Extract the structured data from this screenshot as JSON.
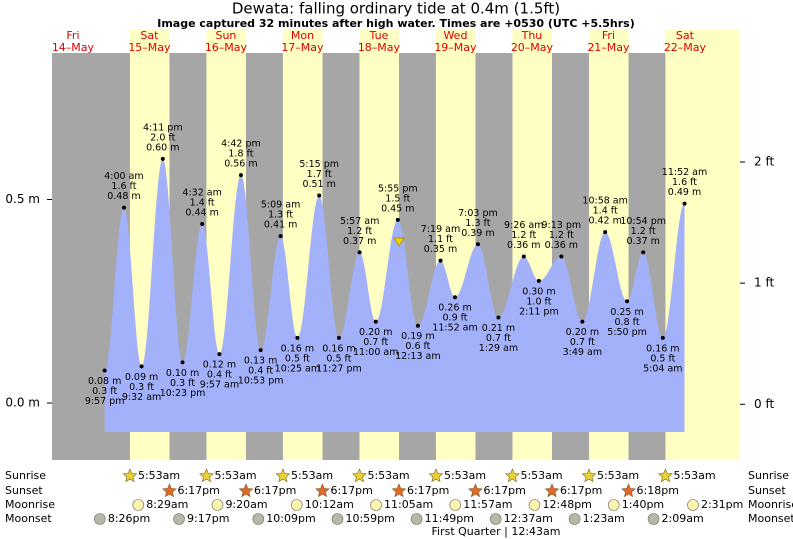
{
  "chart_data": {
    "type": "tide",
    "title": "Dewata: falling  ordinary tide at 0.4m (1.5ft)",
    "subtitle": "Image captured 32 minutes after high water. Times are +0530 (UTC +5.5hrs)",
    "ylim": [
      -0.14,
      0.86
    ],
    "yticks": [
      {
        "value": 0,
        "label": "0.0 m"
      },
      {
        "value": 0.5,
        "label": "0.5 m"
      }
    ],
    "y2lim": [
      -0.46,
      2.9
    ],
    "y2ticks": [
      {
        "value": 0,
        "label": "0 ft"
      },
      {
        "value": 1,
        "label": "1 ft"
      },
      {
        "value": 2,
        "label": "2 ft"
      }
    ],
    "colors": {
      "night": "#a6a6a6",
      "day": "#ffffc4",
      "water": "#a3b1fa",
      "sunrise": "#e8d23a",
      "sunset": "#e2672a",
      "moonrise": "#fbf5b0",
      "moonset": "#b8b8a8"
    },
    "rows": {
      "sunrise": "Sunrise",
      "sunset": "Sunset",
      "moonrise": "Moonrise",
      "moonset": "Moonset"
    },
    "days": [
      {
        "name": "Fri",
        "date": "14–May",
        "moonset": "8:26pm",
        "tides": [
          {
            "time": "9:57 pm",
            "m": 0.08,
            "m_label": "0.08 m",
            "ft_label": "0.3 ft"
          }
        ]
      },
      {
        "name": "Sat",
        "date": "15–May",
        "sunrise": "5:53am",
        "sunset": "6:17pm",
        "moonrise": "8:29am",
        "moonset": "9:17pm",
        "tides": [
          {
            "time": "4:00 am",
            "m": 0.48,
            "m_label": "0.48 m",
            "ft_label": "1.6 ft"
          },
          {
            "time": "9:32 am",
            "m": 0.09,
            "m_label": "0.09 m",
            "ft_label": "0.3 ft"
          },
          {
            "time": "4:11 pm",
            "m": 0.6,
            "m_label": "0.60 m",
            "ft_label": "2.0 ft"
          },
          {
            "time": "10:23 pm",
            "m": 0.1,
            "m_label": "0.10 m",
            "ft_label": "0.3 ft"
          }
        ]
      },
      {
        "name": "Sun",
        "date": "16–May",
        "sunrise": "5:53am",
        "sunset": "6:17pm",
        "moonrise": "9:20am",
        "moonset": "10:09pm",
        "tides": [
          {
            "time": "4:32 am",
            "m": 0.44,
            "m_label": "0.44 m",
            "ft_label": "1.4 ft"
          },
          {
            "time": "9:57 am",
            "m": 0.12,
            "m_label": "0.12 m",
            "ft_label": "0.4 ft"
          },
          {
            "time": "4:42 pm",
            "m": 0.56,
            "m_label": "0.56 m",
            "ft_label": "1.8 ft"
          },
          {
            "time": "10:53 pm",
            "m": 0.13,
            "m_label": "0.13 m",
            "ft_label": "0.4 ft"
          }
        ]
      },
      {
        "name": "Mon",
        "date": "17–May",
        "sunrise": "5:53am",
        "sunset": "6:17pm",
        "moonrise": "10:12am",
        "moonset": "10:59pm",
        "tides": [
          {
            "time": "5:09 am",
            "m": 0.41,
            "m_label": "0.41 m",
            "ft_label": "1.3 ft"
          },
          {
            "time": "10:25 am",
            "m": 0.16,
            "m_label": "0.16 m",
            "ft_label": "0.5 ft"
          },
          {
            "time": "5:15 pm",
            "m": 0.51,
            "m_label": "0.51 m",
            "ft_label": "1.7 ft"
          },
          {
            "time": "11:27 pm",
            "m": 0.16,
            "m_label": "0.16 m",
            "ft_label": "0.5 ft"
          }
        ]
      },
      {
        "name": "Tue",
        "date": "18–May",
        "sunrise": "5:53am",
        "sunset": "6:17pm",
        "moonrise": "11:05am",
        "moonset": "11:49pm",
        "tides": [
          {
            "time": "5:57 am",
            "m": 0.37,
            "m_label": "0.37 m",
            "ft_label": "1.2 ft"
          },
          {
            "time": "11:00 am",
            "m": 0.2,
            "m_label": "0.20 m",
            "ft_label": "0.7 ft"
          },
          {
            "time": "5:55 pm",
            "m": 0.45,
            "m_label": "0.45 m",
            "ft_label": "1.5 ft"
          }
        ]
      },
      {
        "name": "Wed",
        "date": "19–May",
        "sunrise": "5:53am",
        "sunset": "6:17pm",
        "moonrise": "11:57am",
        "tides": [
          {
            "time": "12:13 am",
            "m": 0.19,
            "m_label": "0.19 m",
            "ft_label": "0.6 ft"
          },
          {
            "time": "7:19 am",
            "m": 0.35,
            "m_label": "0.35 m",
            "ft_label": "1.1 ft"
          },
          {
            "time": "11:52 am",
            "m": 0.26,
            "m_label": "0.26 m",
            "ft_label": "0.9 ft"
          },
          {
            "time": "7:03 pm",
            "m": 0.39,
            "m_label": "0.39 m",
            "ft_label": "1.3 ft"
          }
        ]
      },
      {
        "name": "Thu",
        "date": "20–May",
        "sunrise": "5:53am",
        "sunset": "6:17pm",
        "moonrise": "12:48pm",
        "moonset": "12:37am",
        "moon_phase": "First Quarter | 12:43am",
        "tides": [
          {
            "time": "1:29 am",
            "m": 0.21,
            "m_label": "0.21 m",
            "ft_label": "0.7 ft"
          },
          {
            "time": "9:26 am",
            "m": 0.36,
            "m_label": "0.36 m",
            "ft_label": "1.2 ft"
          },
          {
            "time": "2:11 pm",
            "m": 0.3,
            "m_label": "0.30 m",
            "ft_label": "1.0 ft"
          },
          {
            "time": "9:13 pm",
            "m": 0.36,
            "m_label": "0.36 m",
            "ft_label": "1.2 ft"
          }
        ]
      },
      {
        "name": "Fri",
        "date": "21–May",
        "sunrise": "5:53am",
        "sunset": "6:18pm",
        "moonrise": "1:40pm",
        "moonset": "1:23am",
        "tides": [
          {
            "time": "3:49 am",
            "m": 0.2,
            "m_label": "0.20 m",
            "ft_label": "0.7 ft"
          },
          {
            "time": "10:58 am",
            "m": 0.42,
            "m_label": "0.42 m",
            "ft_label": "1.4 ft"
          },
          {
            "time": "5:50 pm",
            "m": 0.25,
            "m_label": "0.25 m",
            "ft_label": "0.8 ft"
          },
          {
            "time": "10:54 pm",
            "m": 0.37,
            "m_label": "0.37 m",
            "ft_label": "1.2 ft"
          }
        ]
      },
      {
        "name": "Sat",
        "date": "22–May",
        "sunrise": "5:53am",
        "moonrise": "2:31pm",
        "moonset": "2:09am",
        "tides": [
          {
            "time": "5:04 am",
            "m": 0.16,
            "m_label": "0.16 m",
            "ft_label": "0.5 ft"
          },
          {
            "time": "11:52 am",
            "m": 0.49,
            "m_label": "0.49 m",
            "ft_label": "1.6 ft"
          }
        ]
      }
    ]
  }
}
